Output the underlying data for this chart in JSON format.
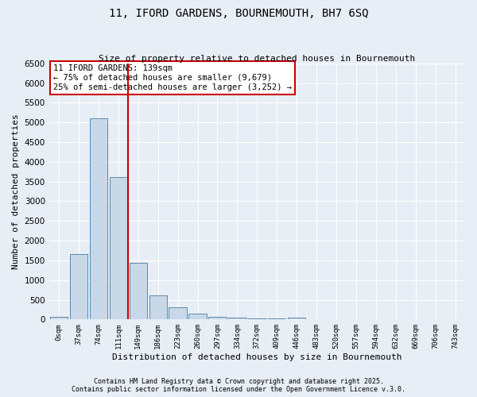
{
  "title": "11, IFORD GARDENS, BOURNEMOUTH, BH7 6SQ",
  "subtitle": "Size of property relative to detached houses in Bournemouth",
  "xlabel": "Distribution of detached houses by size in Bournemouth",
  "ylabel": "Number of detached properties",
  "bar_labels": [
    "0sqm",
    "37sqm",
    "74sqm",
    "111sqm",
    "149sqm",
    "186sqm",
    "223sqm",
    "260sqm",
    "297sqm",
    "334sqm",
    "372sqm",
    "409sqm",
    "446sqm",
    "483sqm",
    "520sqm",
    "557sqm",
    "594sqm",
    "632sqm",
    "669sqm",
    "706sqm",
    "743sqm"
  ],
  "bar_values": [
    60,
    1660,
    5100,
    3620,
    1430,
    610,
    300,
    140,
    75,
    55,
    35,
    20,
    55,
    15,
    10,
    5,
    0,
    0,
    0,
    0,
    0
  ],
  "bar_color": "#c8d8e8",
  "bar_edge_color": "#5a8ab0",
  "vline_x_index": 4,
  "vline_color": "#cc0000",
  "annotation_text": "11 IFORD GARDENS: 139sqm\n← 75% of detached houses are smaller (9,679)\n25% of semi-detached houses are larger (3,252) →",
  "annotation_box_color": "#ffffff",
  "annotation_box_edge": "#cc0000",
  "footnote1": "Contains HM Land Registry data © Crown copyright and database right 2025.",
  "footnote2": "Contains public sector information licensed under the Open Government Licence v.3.0.",
  "background_color": "#e8eef5",
  "ylim": [
    0,
    6500
  ],
  "yticks": [
    0,
    500,
    1000,
    1500,
    2000,
    2500,
    3000,
    3500,
    4000,
    4500,
    5000,
    5500,
    6000,
    6500
  ]
}
